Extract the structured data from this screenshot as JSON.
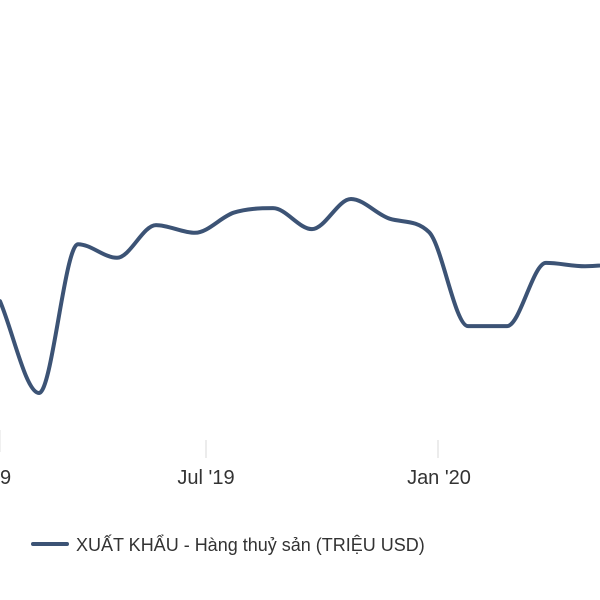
{
  "chart_data": {
    "type": "line",
    "title": "",
    "xlabel": "",
    "ylabel": "",
    "x_ticks": [
      "9",
      "Jul '19",
      "Jan '20"
    ],
    "legend": {
      "position": "bottom-left",
      "label": "XUẤT KHẨU - Hàng thuỷ sản (TRIỆU USD)"
    },
    "grid": false,
    "series": [
      {
        "name": "XUẤT KHẨU - Hàng thuỷ sản (TRIỆU USD)",
        "color": "#3c5375",
        "x": [
          "2018-12",
          "2019-01",
          "2019-02",
          "2019-03",
          "2019-04",
          "2019-05",
          "2019-06",
          "2019-07",
          "2019-08",
          "2019-09",
          "2019-10",
          "2019-11",
          "2019-12",
          "2020-01",
          "2020-02",
          "2020-03",
          "2020-04",
          "2020-05"
        ],
        "values": [
          700,
          450,
          855,
          818,
          907,
          886,
          941,
          953,
          896,
          978,
          924,
          888,
          632,
          632,
          804,
          795,
          809,
          853
        ]
      }
    ]
  }
}
